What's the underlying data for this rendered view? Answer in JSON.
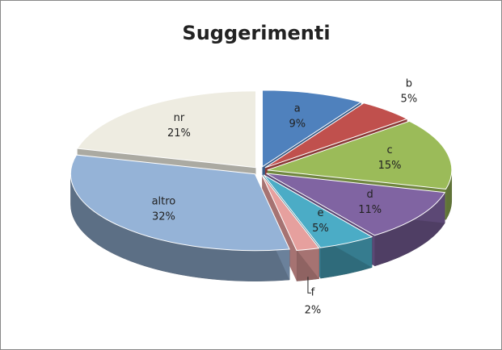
{
  "chart_data": {
    "type": "pie",
    "title": "Suggerimenti",
    "categories": [
      "a",
      "b",
      "c",
      "d",
      "e",
      "f",
      "altro",
      "nr"
    ],
    "values": [
      9,
      5,
      15,
      11,
      5,
      2,
      32,
      21
    ],
    "value_labels": [
      "9%",
      "5%",
      "15%",
      "11%",
      "5%",
      "2%",
      "32%",
      "21%"
    ],
    "colors": [
      "#4f81bd",
      "#c0504d",
      "#9bbb59",
      "#8064a2",
      "#4bacc6",
      "#e6a09e",
      "#95b3d7",
      "#eeece1"
    ]
  }
}
